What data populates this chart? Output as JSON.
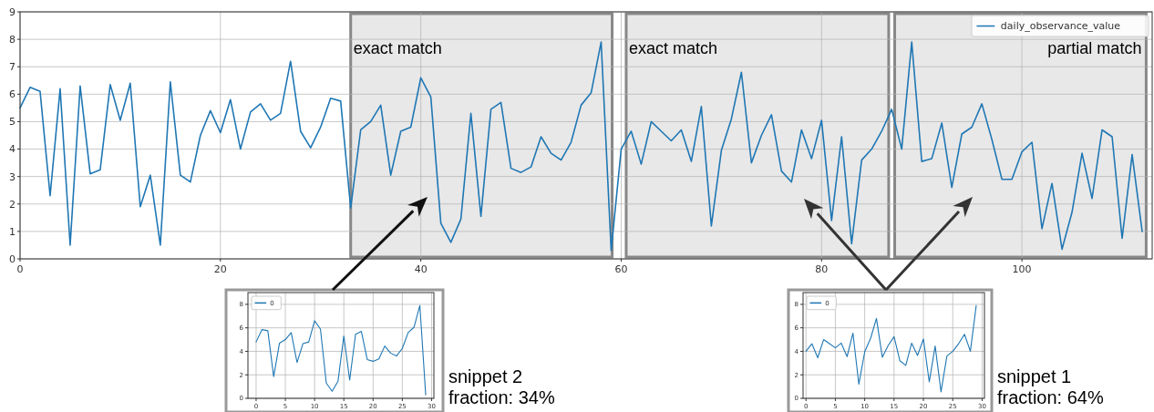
{
  "chart_data": [
    {
      "type": "line",
      "x": [
        0,
        1,
        2,
        3,
        4,
        5,
        6,
        7,
        8,
        9,
        10,
        11,
        12,
        13,
        14,
        15,
        16,
        17,
        18,
        19,
        20,
        21,
        22,
        23,
        24,
        25,
        26,
        27,
        28,
        29,
        30,
        31,
        32,
        33,
        34,
        35,
        36,
        37,
        38,
        39,
        40,
        41,
        42,
        43,
        44,
        45,
        46,
        47,
        48,
        49,
        50,
        51,
        52,
        53,
        54,
        55,
        56,
        57,
        58,
        59,
        60,
        61,
        62,
        63,
        64,
        65,
        66,
        67,
        68,
        69,
        70,
        71,
        72,
        73,
        74,
        75,
        76,
        77,
        78,
        79,
        80,
        81,
        82,
        83,
        84,
        85,
        86,
        87,
        88,
        89,
        90,
        91,
        92,
        93,
        94,
        95,
        96,
        97,
        98,
        99,
        100,
        101,
        102,
        103,
        104,
        105,
        106,
        107,
        108,
        109,
        110,
        111,
        112
      ],
      "series": [
        {
          "name": "daily_observance_value",
          "color": "#1f77b4",
          "values": [
            5.5,
            6.25,
            6.1,
            2.3,
            6.2,
            0.5,
            6.3,
            3.1,
            3.25,
            6.35,
            5.05,
            6.4,
            1.9,
            3.05,
            0.5,
            6.45,
            3.05,
            2.8,
            4.5,
            5.4,
            4.6,
            5.8,
            4.0,
            5.35,
            5.65,
            5.05,
            5.3,
            7.2,
            4.65,
            4.05,
            4.8,
            5.85,
            5.75,
            1.85,
            4.7,
            5.0,
            5.6,
            3.05,
            4.65,
            4.8,
            6.6,
            5.9,
            1.3,
            0.6,
            1.45,
            5.3,
            1.55,
            5.45,
            5.7,
            3.3,
            3.15,
            3.35,
            4.45,
            3.85,
            3.6,
            4.25,
            5.6,
            6.05,
            7.9,
            0.3,
            4.0,
            4.65,
            3.45,
            5.0,
            4.65,
            4.3,
            4.7,
            3.55,
            5.55,
            1.2,
            3.95,
            5.1,
            6.8,
            3.5,
            4.5,
            5.25,
            3.2,
            2.8,
            4.7,
            3.65,
            5.05,
            1.4,
            4.45,
            0.55,
            3.6,
            4.0,
            4.65,
            5.45,
            4.0,
            7.9,
            3.55,
            3.65,
            4.95,
            2.6,
            4.55,
            4.8,
            5.65,
            4.35,
            2.9,
            2.9,
            3.9,
            4.25,
            1.1,
            2.75,
            0.35,
            1.7,
            3.85,
            2.2,
            4.7,
            4.45,
            0.75,
            3.8,
            1.0
          ]
        }
      ],
      "xlim": [
        0,
        113
      ],
      "xticks": [
        0,
        20,
        40,
        60,
        80,
        100
      ],
      "ylim": [
        0,
        9
      ],
      "yticks": [
        0,
        1,
        2,
        3,
        4,
        5,
        6,
        7,
        8,
        9
      ],
      "grid": true,
      "legend": "top right",
      "bands": [
        {
          "axis": "x",
          "from": 33,
          "to": 59.1,
          "label": "exact match",
          "color": "#e8e8e8"
        },
        {
          "axis": "x",
          "from": 60.5,
          "to": 86.7,
          "label": "exact match",
          "color": "#e8e8e8"
        },
        {
          "axis": "x",
          "from": 87.3,
          "to": 112.4,
          "label": "partial match",
          "color": "#e8e8e8"
        }
      ]
    },
    {
      "type": "line",
      "x": [
        0,
        1,
        2,
        3,
        4,
        5,
        6,
        7,
        8,
        9,
        10,
        11,
        12,
        13,
        14,
        15,
        16,
        17,
        18,
        19,
        20,
        21,
        22,
        23,
        24,
        25,
        26,
        27,
        28,
        29
      ],
      "series": [
        {
          "name": "0",
          "color": "#1f77b4",
          "values": [
            4.8,
            5.85,
            5.75,
            1.85,
            4.7,
            5.0,
            5.6,
            3.05,
            4.65,
            4.8,
            6.6,
            5.9,
            1.3,
            0.6,
            1.45,
            5.3,
            1.55,
            5.45,
            5.7,
            3.3,
            3.15,
            3.35,
            4.45,
            3.85,
            3.6,
            4.25,
            5.6,
            6.05,
            7.9,
            0.3
          ]
        }
      ],
      "xlim": [
        -1.4,
        30.4
      ],
      "xticks": [
        0,
        5,
        10,
        15,
        20,
        25,
        30
      ],
      "ylim": [
        0,
        9
      ],
      "yticks": [
        0,
        2,
        4,
        6,
        8
      ],
      "grid": true,
      "legend": "top left",
      "annotations": [
        "snippet 2",
        "fraction: 34%"
      ]
    },
    {
      "type": "line",
      "x": [
        0,
        1,
        2,
        3,
        4,
        5,
        6,
        7,
        8,
        9,
        10,
        11,
        12,
        13,
        14,
        15,
        16,
        17,
        18,
        19,
        20,
        21,
        22,
        23,
        24,
        25,
        26,
        27,
        28,
        29
      ],
      "series": [
        {
          "name": "0",
          "color": "#1f77b4",
          "values": [
            4.0,
            4.65,
            3.45,
            5.0,
            4.65,
            4.3,
            4.7,
            3.55,
            5.55,
            1.2,
            3.95,
            5.1,
            6.8,
            3.5,
            4.5,
            5.25,
            3.2,
            2.8,
            4.7,
            3.65,
            5.05,
            1.4,
            4.45,
            0.55,
            3.6,
            4.0,
            4.65,
            5.45,
            4.0,
            7.9
          ]
        }
      ],
      "xlim": [
        -0.5,
        30.4
      ],
      "xticks": [
        0,
        5,
        10,
        15,
        20,
        25,
        30
      ],
      "ylim": [
        0,
        9
      ],
      "yticks": [
        0,
        2,
        4,
        6,
        8
      ],
      "grid": true,
      "legend": "top left",
      "annotations": [
        "snippet 1",
        "fraction: 64%"
      ]
    }
  ]
}
